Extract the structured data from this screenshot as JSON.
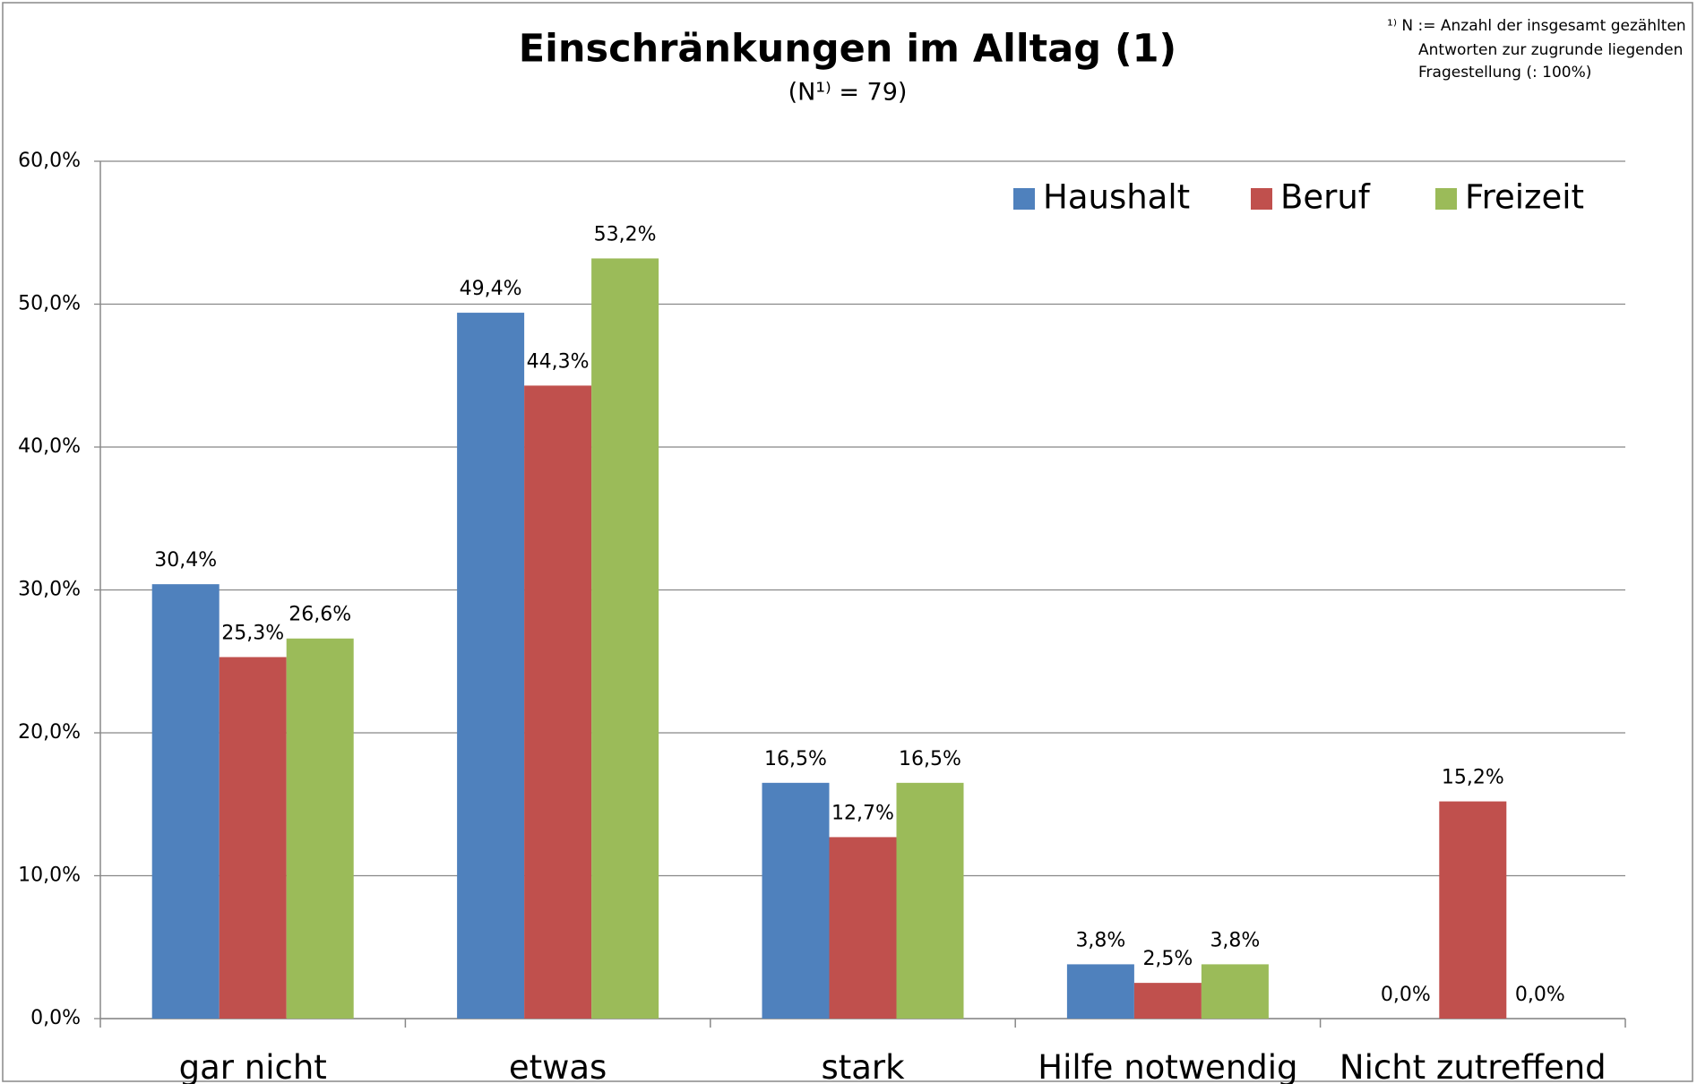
{
  "chart_data": {
    "type": "bar",
    "title": "Einschränkungen im Alltag (1)",
    "subtitle": "(N¹⁾ = 79)",
    "footnote": [
      "¹⁾ N := Anzahl der insgesamt gezählten",
      "Antworten zur zugrunde liegenden",
      "Fragestellung (: 100%)"
    ],
    "categories": [
      "gar nicht",
      "etwas",
      "stark",
      "Hilfe notwendig",
      "Nicht zutreffend"
    ],
    "series": [
      {
        "name": "Haushalt",
        "color": "#4f81bd",
        "values": [
          30.4,
          49.4,
          16.5,
          3.8,
          0.0
        ],
        "value_labels": [
          "30,4%",
          "49,4%",
          "16,5%",
          "3,8%",
          "0,0%"
        ]
      },
      {
        "name": "Beruf",
        "color": "#c0504d",
        "values": [
          25.3,
          44.3,
          12.7,
          2.5,
          15.2
        ],
        "value_labels": [
          "25,3%",
          "44,3%",
          "12,7%",
          "2,5%",
          "15,2%"
        ]
      },
      {
        "name": "Freizeit",
        "color": "#9bbb59",
        "values": [
          26.6,
          53.2,
          16.5,
          3.8,
          0.0
        ],
        "value_labels": [
          "26,6%",
          "53,2%",
          "16,5%",
          "3,8%",
          "0,0%"
        ]
      }
    ],
    "ylim": [
      0,
      60
    ],
    "yticks": [
      {
        "value": 0,
        "label": "0,0%"
      },
      {
        "value": 10,
        "label": "10,0%"
      },
      {
        "value": 20,
        "label": "20,0%"
      },
      {
        "value": 30,
        "label": "30,0%"
      },
      {
        "value": 40,
        "label": "40,0%"
      },
      {
        "value": 50,
        "label": "50,0%"
      },
      {
        "value": 60,
        "label": "60,0%"
      }
    ],
    "grid": true,
    "legend": "top-right"
  }
}
